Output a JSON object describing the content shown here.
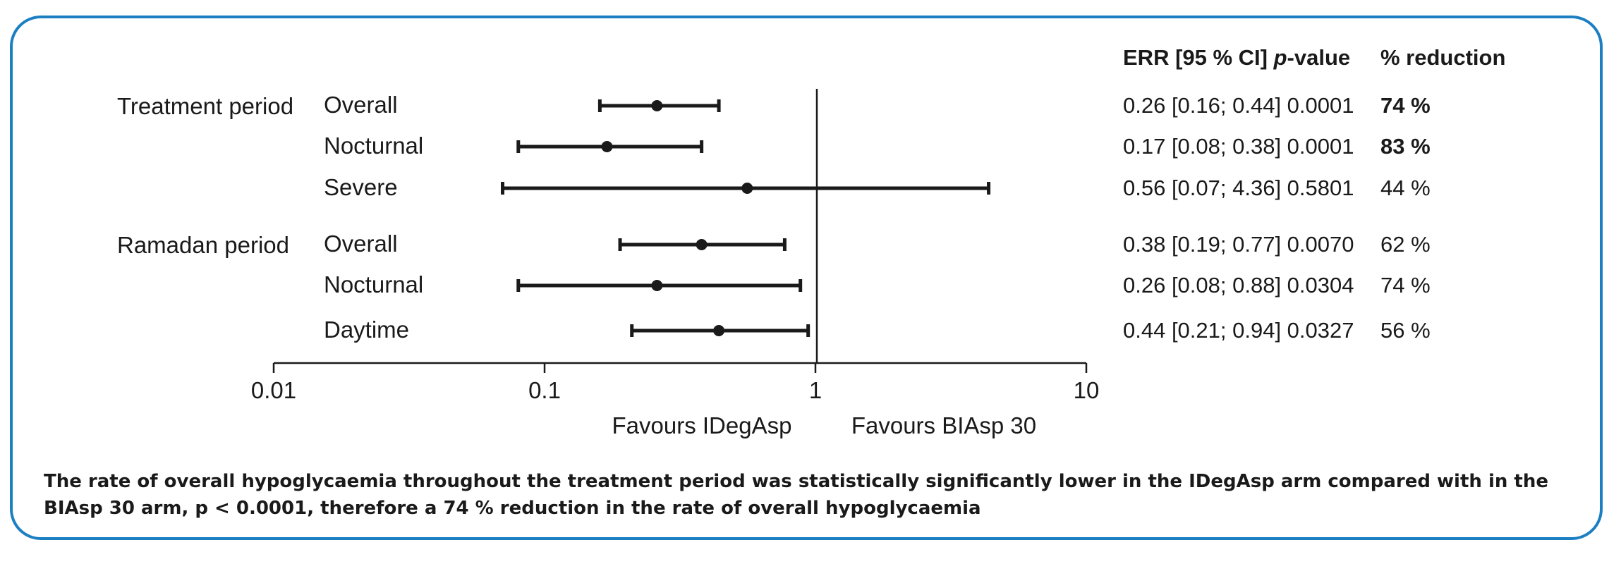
{
  "chart_data": {
    "type": "forest",
    "x_scale": "log",
    "xlim": [
      0.01,
      10
    ],
    "x_ticks": [
      0.01,
      0.1,
      1,
      10
    ],
    "x_tick_labels": [
      "0.01",
      "0.1",
      "1",
      "10"
    ],
    "reference_line": 1,
    "favours_left": "Favours IDegAsp",
    "favours_right": "Favours BIAsp 30",
    "columns": {
      "stats_header_prefix": "ERR [95 % CI] ",
      "stats_header_italic": "p",
      "stats_header_suffix": "-value",
      "reduction_header": "% reduction"
    },
    "groups": [
      "Treatment period",
      "Ramadan period"
    ],
    "rows": [
      {
        "group": "Treatment period",
        "label": "Overall",
        "err": 0.26,
        "ci_low": 0.16,
        "ci_high": 0.44,
        "p": "0.0001",
        "stats_text": "0.26 [0.16; 0.44] 0.0001",
        "reduction": "74 %",
        "bold": true
      },
      {
        "group": "Treatment period",
        "label": "Nocturnal",
        "err": 0.17,
        "ci_low": 0.08,
        "ci_high": 0.38,
        "p": "0.0001",
        "stats_text": "0.17 [0.08; 0.38] 0.0001",
        "reduction": "83 %",
        "bold": true
      },
      {
        "group": "Treatment period",
        "label": "Severe",
        "err": 0.56,
        "ci_low": 0.07,
        "ci_high": 4.36,
        "p": "0.5801",
        "stats_text": "0.56 [0.07; 4.36] 0.5801",
        "reduction": "44 %",
        "bold": false
      },
      {
        "group": "Ramadan period",
        "label": "Overall",
        "err": 0.38,
        "ci_low": 0.19,
        "ci_high": 0.77,
        "p": "0.0070",
        "stats_text": "0.38 [0.19; 0.77] 0.0070",
        "reduction": "62 %",
        "bold": false
      },
      {
        "group": "Ramadan period",
        "label": "Nocturnal",
        "err": 0.26,
        "ci_low": 0.08,
        "ci_high": 0.88,
        "p": "0.0304",
        "stats_text": "0.26 [0.08; 0.88] 0.0304",
        "reduction": "74 %",
        "bold": false
      },
      {
        "group": "Ramadan period",
        "label": "Daytime",
        "err": 0.44,
        "ci_low": 0.21,
        "ci_high": 0.94,
        "p": "0.0327",
        "stats_text": "0.44 [0.21; 0.94] 0.0327",
        "reduction": "56 %",
        "bold": false
      }
    ],
    "colors": {
      "frame": "#1c7fc2",
      "ink": "#1a1a1a"
    }
  },
  "caption": "The rate of overall hypoglycaemia throughout the treatment period was statistically significantly lower in the IDegAsp arm compared with in the BIAsp 30 arm, p < 0.0001, therefore a 74 % reduction in the rate of overall hypoglycaemia"
}
